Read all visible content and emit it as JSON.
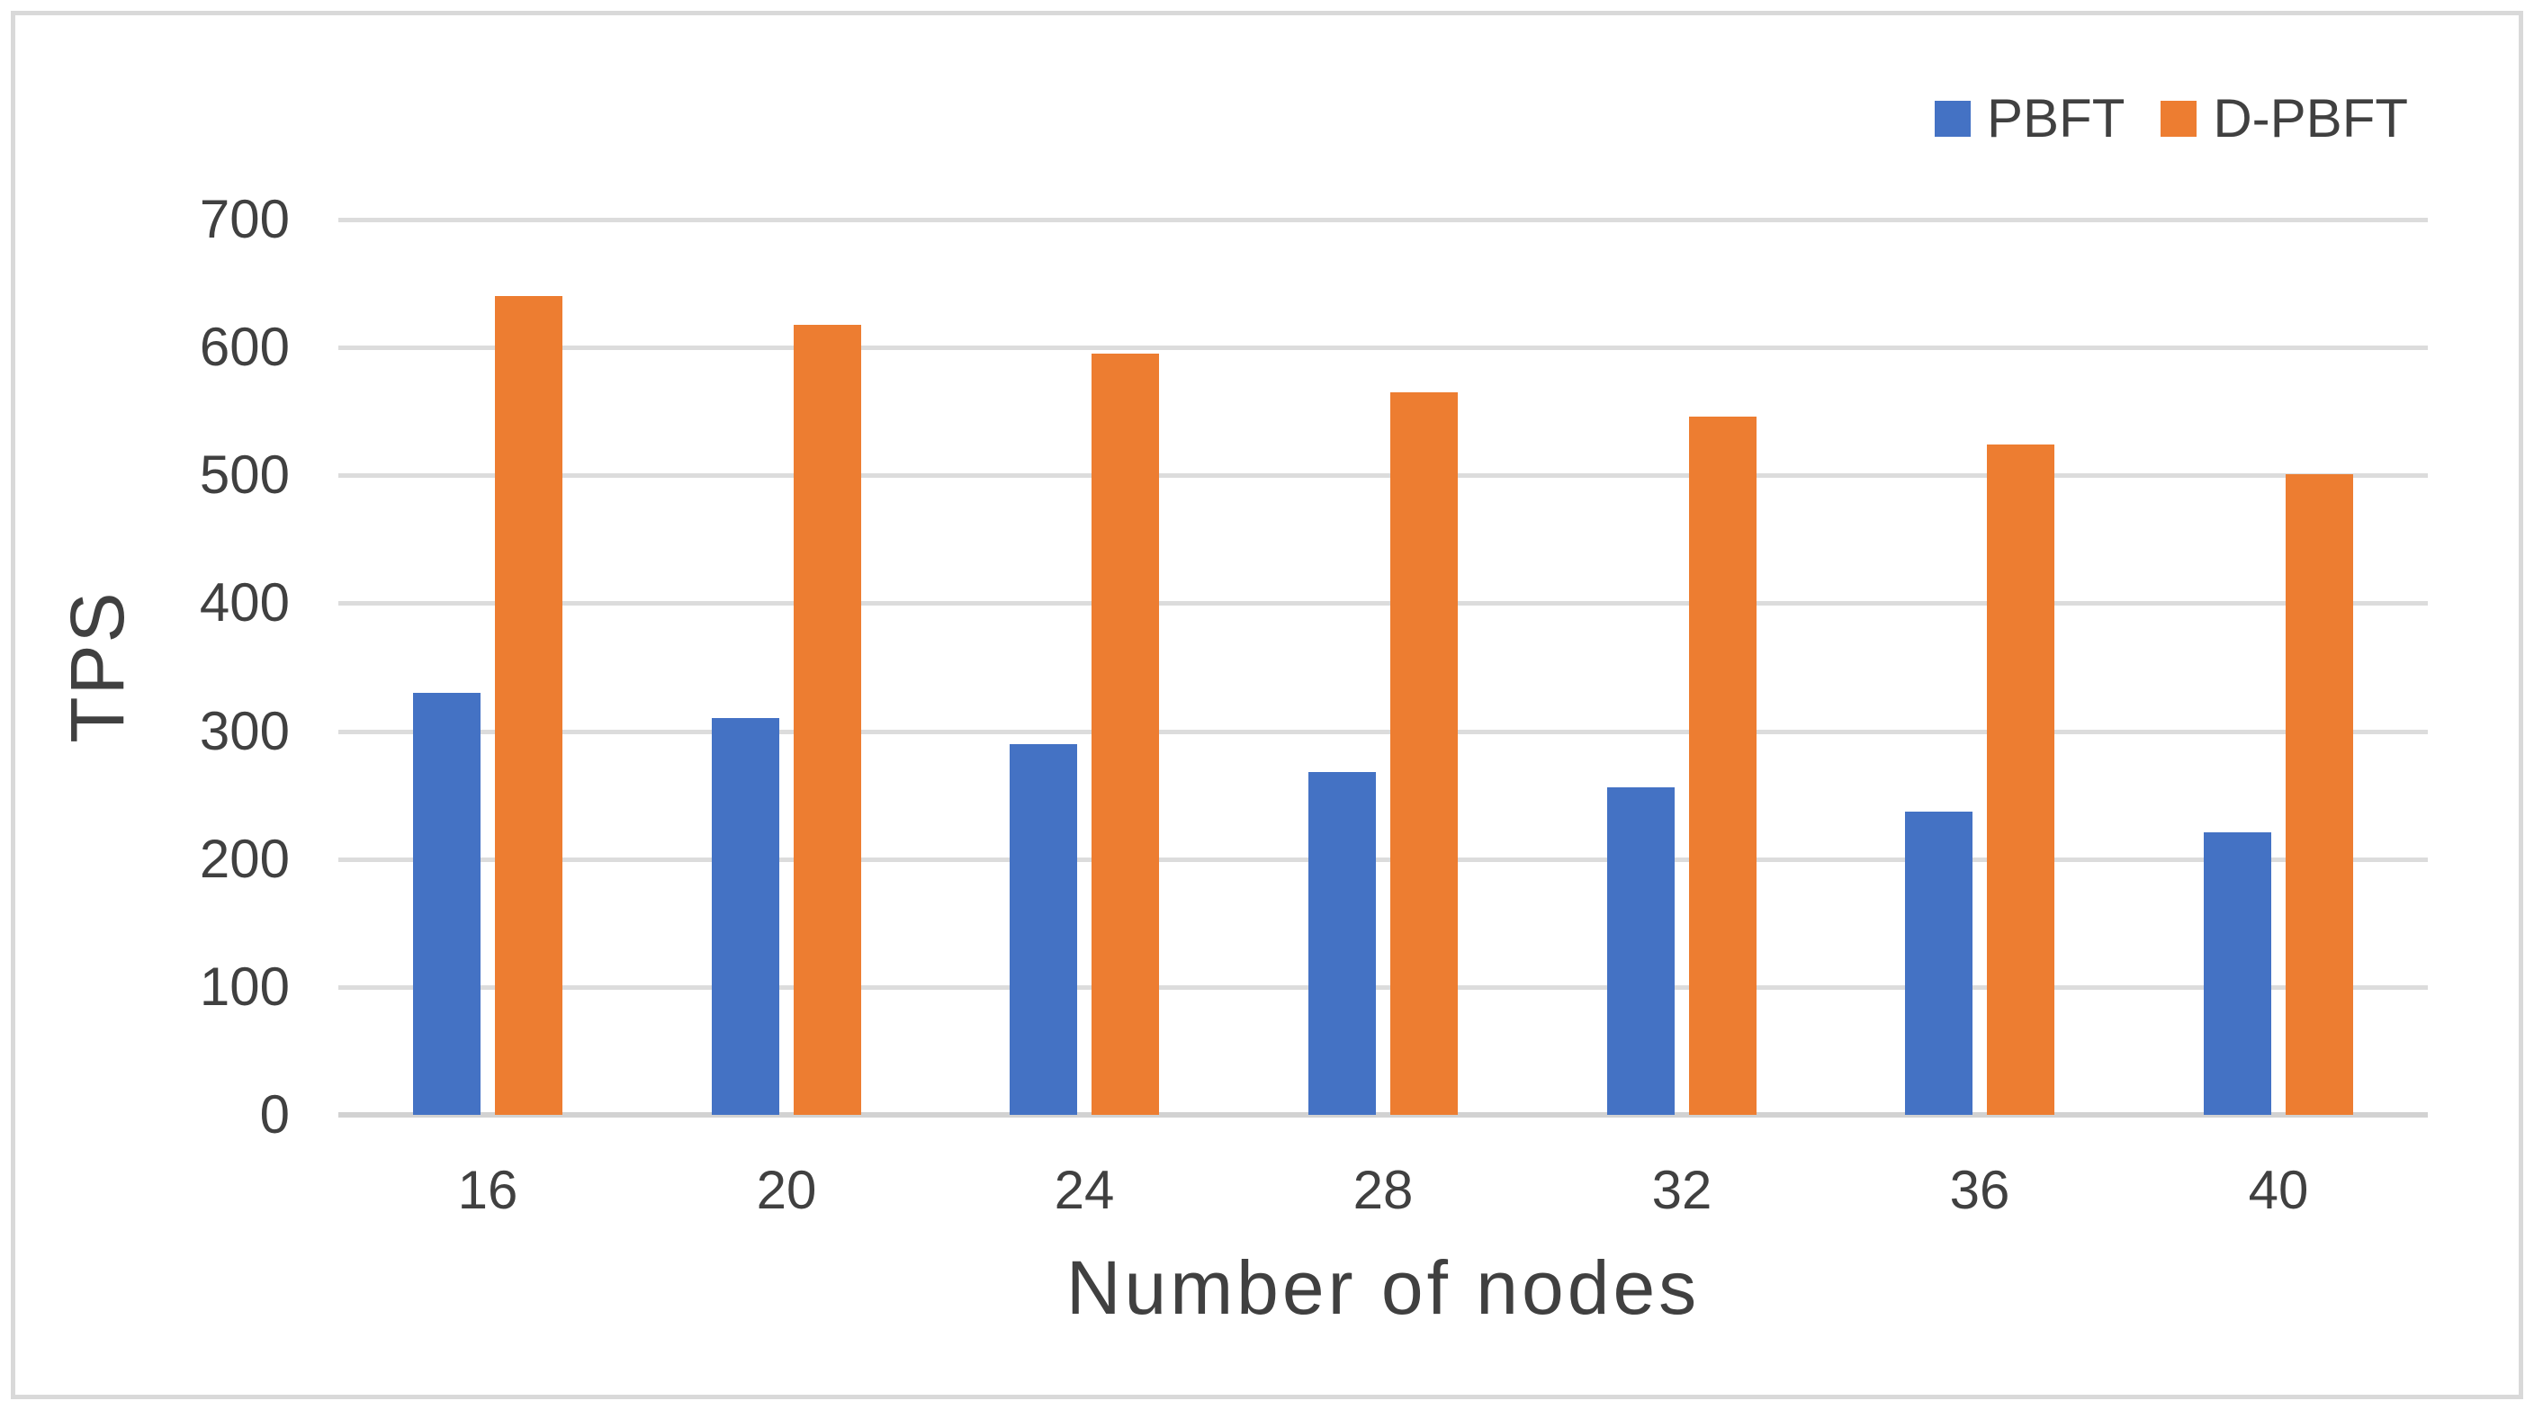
{
  "legend": {
    "items": [
      {
        "label": "PBFT",
        "color": "#4472C4"
      },
      {
        "label": "D-PBFT",
        "color": "#ED7D31"
      }
    ]
  },
  "y_axis": {
    "title": "TPS",
    "tick_labels": [
      "700",
      "600",
      "500",
      "400",
      "300",
      "200",
      "100",
      "0"
    ]
  },
  "x_axis": {
    "title": "Number of nodes",
    "tick_labels": [
      "16",
      "20",
      "24",
      "28",
      "32",
      "36",
      "40"
    ]
  },
  "chart_data": {
    "type": "bar",
    "title": "",
    "xlabel": "Number of nodes",
    "ylabel": "TPS",
    "categories": [
      "16",
      "20",
      "24",
      "28",
      "32",
      "36",
      "40"
    ],
    "series": [
      {
        "name": "PBFT",
        "color": "#4472C4",
        "values": [
          330,
          310,
          290,
          268,
          256,
          237,
          221
        ]
      },
      {
        "name": "D-PBFT",
        "color": "#ED7D31",
        "values": [
          640,
          618,
          595,
          565,
          546,
          524,
          501
        ]
      }
    ],
    "ylim": [
      0,
      700
    ],
    "yticks": [
      0,
      100,
      200,
      300,
      400,
      500,
      600,
      700
    ],
    "grid": true,
    "gridline_color": "#dcdcdc",
    "legend_position": "top-right"
  }
}
